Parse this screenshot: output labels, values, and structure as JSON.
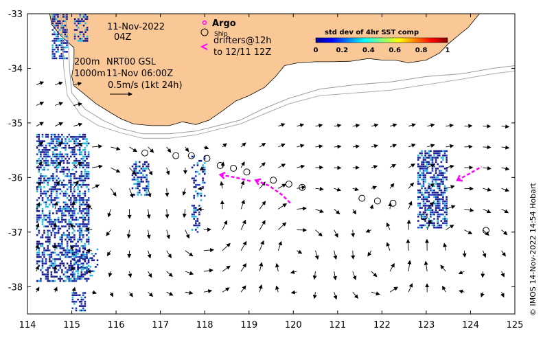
{
  "map": {
    "date_line1": "11-Nov-2022",
    "date_line2": "04Z",
    "legend_argo": "Argo",
    "legend_ship": "Ship",
    "legend_drifters_line1": "drifters@12h",
    "legend_drifters_line2": "to 12/11 12Z",
    "contour_200": "200m",
    "contour_1000": "1000m",
    "current_product": "NRT00 GSL",
    "current_time": "11-Nov 06:00Z",
    "scale_label": "0.5m/s (1kt 24h)",
    "credit": "© IMOS 14-Nov-2022 14:54 Hobart",
    "colors": {
      "land": "#fac896",
      "argo": "#ff00ff",
      "drifter": "#ff00ff",
      "ship": "#000000",
      "sst_dark": "#1a1a8c",
      "sst_mid": "#2244cc",
      "sst_cyan": "#22bbdd"
    },
    "colorbar": {
      "title": "std dev of 4hr SST comp",
      "ticks": [
        "0",
        "0.2",
        "0.4",
        "0.6",
        "0.8",
        "1"
      ],
      "colormap": "jet"
    },
    "x_ticks": [
      "114",
      "115",
      "116",
      "117",
      "118",
      "119",
      "120",
      "121",
      "122",
      "123",
      "124",
      "125"
    ],
    "y_ticks": [
      "-33",
      "-34",
      "-35",
      "-36",
      "-37",
      "-38"
    ],
    "lon_range": [
      114,
      125
    ],
    "lat_range": [
      -38.5,
      -33
    ],
    "ship_positions": [
      [
        116.65,
        -35.55
      ],
      [
        117.35,
        -35.6
      ],
      [
        117.7,
        -35.6
      ],
      [
        118.05,
        -35.65
      ],
      [
        118.35,
        -35.78
      ],
      [
        118.65,
        -35.83
      ],
      [
        118.95,
        -35.9
      ],
      [
        119.55,
        -36.05
      ],
      [
        119.9,
        -36.12
      ],
      [
        120.2,
        -36.18
      ],
      [
        121.55,
        -36.38
      ],
      [
        121.9,
        -36.43
      ],
      [
        122.25,
        -36.47
      ],
      [
        122.95,
        -36.72
      ],
      [
        124.35,
        -36.97
      ]
    ],
    "drifter_tracks": [
      [
        [
          118.35,
          -35.95
        ],
        [
          118.7,
          -36.0
        ],
        [
          119.05,
          -36.07
        ]
      ],
      [
        [
          119.15,
          -36.05
        ],
        [
          119.45,
          -36.15
        ],
        [
          119.75,
          -36.32
        ],
        [
          119.95,
          -36.48
        ]
      ],
      [
        [
          123.7,
          -36.05
        ],
        [
          124.0,
          -35.92
        ],
        [
          124.25,
          -35.8
        ]
      ]
    ],
    "coastline": [
      [
        114.5,
        -33.0
      ],
      [
        114.55,
        -33.2
      ],
      [
        114.75,
        -33.4
      ],
      [
        114.95,
        -33.55
      ],
      [
        115.05,
        -33.62
      ],
      [
        115.05,
        -33.9
      ],
      [
        115.0,
        -34.15
      ],
      [
        115.05,
        -34.32
      ],
      [
        115.25,
        -34.45
      ],
      [
        115.55,
        -34.65
      ],
      [
        115.85,
        -34.8
      ],
      [
        116.1,
        -34.92
      ],
      [
        116.4,
        -35.02
      ],
      [
        116.8,
        -35.05
      ],
      [
        117.2,
        -35.05
      ],
      [
        117.5,
        -34.98
      ],
      [
        117.8,
        -35.03
      ],
      [
        118.1,
        -34.95
      ],
      [
        118.4,
        -34.78
      ],
      [
        118.7,
        -34.6
      ],
      [
        119.0,
        -34.5
      ],
      [
        119.35,
        -34.35
      ],
      [
        119.6,
        -34.15
      ],
      [
        119.8,
        -33.95
      ],
      [
        120.1,
        -33.9
      ],
      [
        120.5,
        -33.88
      ],
      [
        120.9,
        -33.88
      ],
      [
        121.3,
        -33.87
      ],
      [
        121.7,
        -33.82
      ],
      [
        122.0,
        -33.85
      ],
      [
        122.3,
        -33.85
      ],
      [
        122.6,
        -33.9
      ],
      [
        123.0,
        -33.85
      ],
      [
        123.3,
        -33.72
      ],
      [
        123.5,
        -33.55
      ],
      [
        123.75,
        -33.38
      ],
      [
        123.95,
        -33.25
      ],
      [
        124.1,
        -33.1
      ],
      [
        124.2,
        -33.0
      ]
    ],
    "iso_200": [
      [
        114.85,
        -33.0
      ],
      [
        114.92,
        -33.5
      ],
      [
        114.95,
        -34.0
      ],
      [
        115.0,
        -34.45
      ],
      [
        115.3,
        -34.75
      ],
      [
        115.7,
        -34.95
      ],
      [
        116.1,
        -35.1
      ],
      [
        116.6,
        -35.2
      ],
      [
        117.2,
        -35.2
      ],
      [
        117.8,
        -35.15
      ],
      [
        118.3,
        -35.05
      ],
      [
        118.8,
        -34.95
      ],
      [
        119.3,
        -34.75
      ],
      [
        119.9,
        -34.55
      ],
      [
        120.6,
        -34.38
      ],
      [
        121.4,
        -34.3
      ],
      [
        122.2,
        -34.25
      ],
      [
        123.0,
        -34.15
      ],
      [
        123.8,
        -34.1
      ],
      [
        124.5,
        -34.0
      ],
      [
        125.0,
        -33.95
      ]
    ],
    "iso_1000": [
      [
        114.75,
        -33.0
      ],
      [
        114.8,
        -33.5
      ],
      [
        114.82,
        -34.0
      ],
      [
        114.9,
        -34.5
      ],
      [
        115.2,
        -34.85
      ],
      [
        115.6,
        -35.05
      ],
      [
        116.1,
        -35.18
      ],
      [
        116.6,
        -35.28
      ],
      [
        117.2,
        -35.28
      ],
      [
        117.8,
        -35.22
      ],
      [
        118.3,
        -35.12
      ],
      [
        118.8,
        -35.02
      ],
      [
        119.3,
        -34.85
      ],
      [
        119.9,
        -34.65
      ],
      [
        120.6,
        -34.5
      ],
      [
        121.4,
        -34.45
      ],
      [
        122.2,
        -34.4
      ],
      [
        123.0,
        -34.3
      ],
      [
        123.8,
        -34.2
      ],
      [
        124.5,
        -34.1
      ],
      [
        125.0,
        -34.05
      ]
    ]
  }
}
